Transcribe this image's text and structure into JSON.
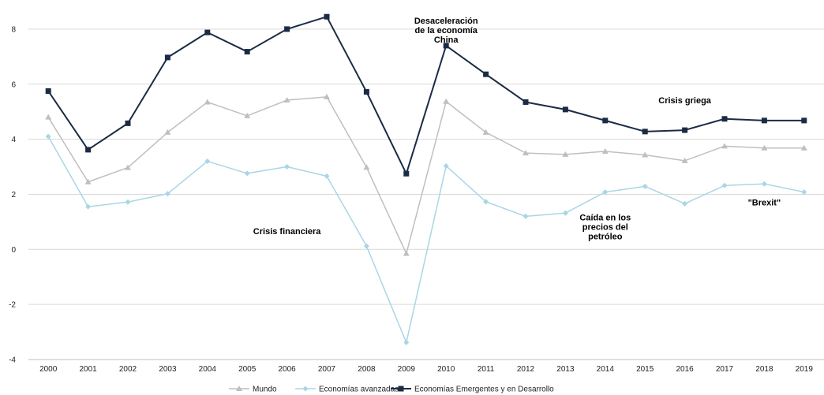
{
  "chart_data": {
    "type": "line",
    "title": "",
    "xlabel": "",
    "ylabel": "",
    "ylim": [
      -4,
      9
    ],
    "yticks": [
      -4,
      -2,
      0,
      2,
      4,
      6,
      8
    ],
    "grid": "horizontal",
    "legend_position": "bottom",
    "categories": [
      "2000",
      "2001",
      "2002",
      "2003",
      "2004",
      "2005",
      "2006",
      "2007",
      "2008",
      "2009",
      "2010",
      "2011",
      "2012",
      "2013",
      "2014",
      "2015",
      "2016",
      "2017",
      "2018",
      "2019"
    ],
    "series": [
      {
        "name": "Mundo",
        "color": "#bfbfbf",
        "marker": "triangle",
        "values": [
          4.8,
          2.45,
          2.97,
          4.25,
          5.35,
          4.85,
          5.42,
          5.54,
          2.98,
          -0.15,
          5.37,
          4.25,
          3.5,
          3.45,
          3.56,
          3.43,
          3.22,
          3.75,
          3.68,
          3.68
        ]
      },
      {
        "name": "Economías avanzadas",
        "color": "#a9d6e5",
        "marker": "diamond",
        "values": [
          4.1,
          1.55,
          1.72,
          2.02,
          3.2,
          2.76,
          3.0,
          2.66,
          0.12,
          -3.38,
          3.03,
          1.73,
          1.2,
          1.32,
          2.08,
          2.29,
          1.66,
          2.32,
          2.38,
          2.08
        ]
      },
      {
        "name": "Economías Emergentes y en Desarrollo",
        "color": "#1b2b45",
        "marker": "square",
        "values": [
          5.75,
          3.62,
          4.58,
          6.97,
          7.88,
          7.18,
          8.0,
          8.45,
          5.72,
          2.75,
          7.4,
          6.36,
          5.35,
          5.08,
          4.68,
          4.28,
          4.33,
          4.74,
          4.68,
          4.68
        ]
      }
    ],
    "annotations": [
      {
        "lines": [
          "Desaceleración",
          "de la economía",
          "China"
        ],
        "year": "2010",
        "value": 8.2
      },
      {
        "lines": [
          "Crisis griega"
        ],
        "year": "2016",
        "value": 5.3
      },
      {
        "lines": [
          "Crisis financiera"
        ],
        "year": "2006",
        "value": 0.55
      },
      {
        "lines": [
          "Caída en los",
          "precios del",
          "petróleo"
        ],
        "year": "2014",
        "value": 1.05
      },
      {
        "lines": [
          "\"Brexit\""
        ],
        "year": "2018",
        "value": 1.6
      }
    ]
  }
}
